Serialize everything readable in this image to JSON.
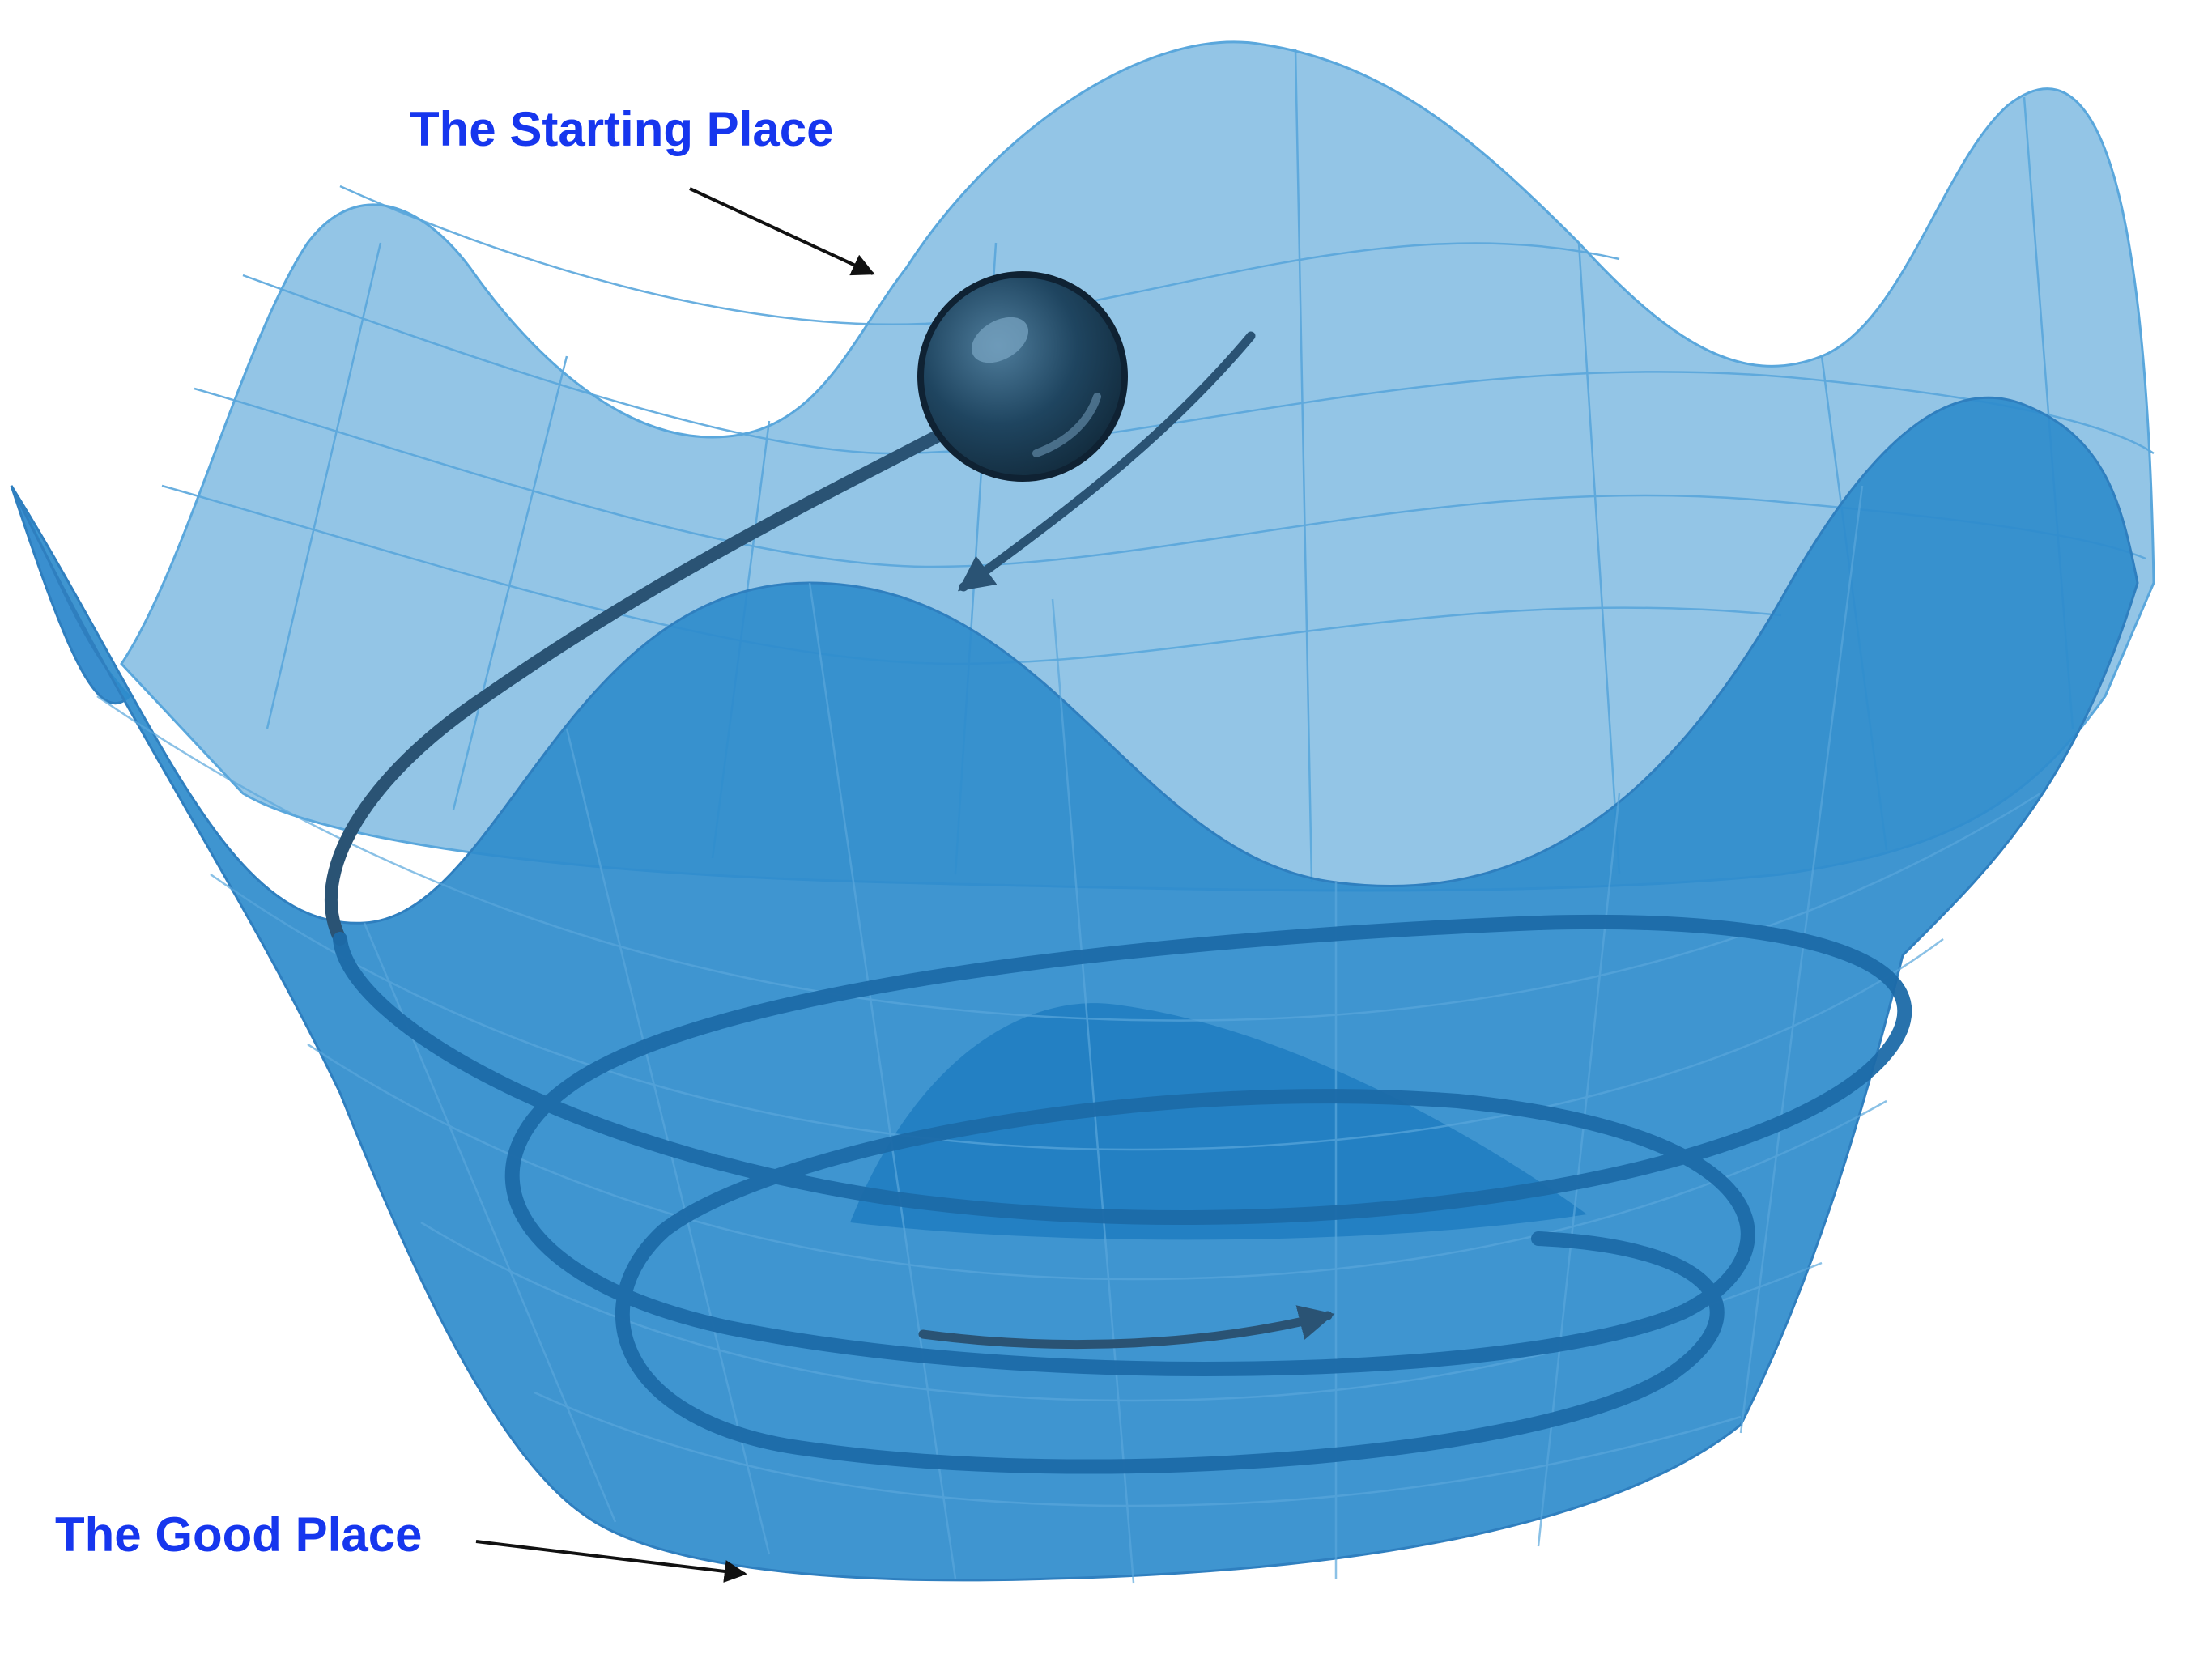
{
  "labels": {
    "start": "The Starting Place",
    "good": "The Good Place"
  },
  "colors": {
    "label_text": "#1636ee",
    "surface_back": "#93c5e6",
    "surface_front": "#2f8ccc",
    "grid_line": "#5aa7dc",
    "path": "#1c6aa8",
    "path_dark": "#2a5374",
    "ball": "#1b3a52",
    "arrow": "#111111"
  }
}
